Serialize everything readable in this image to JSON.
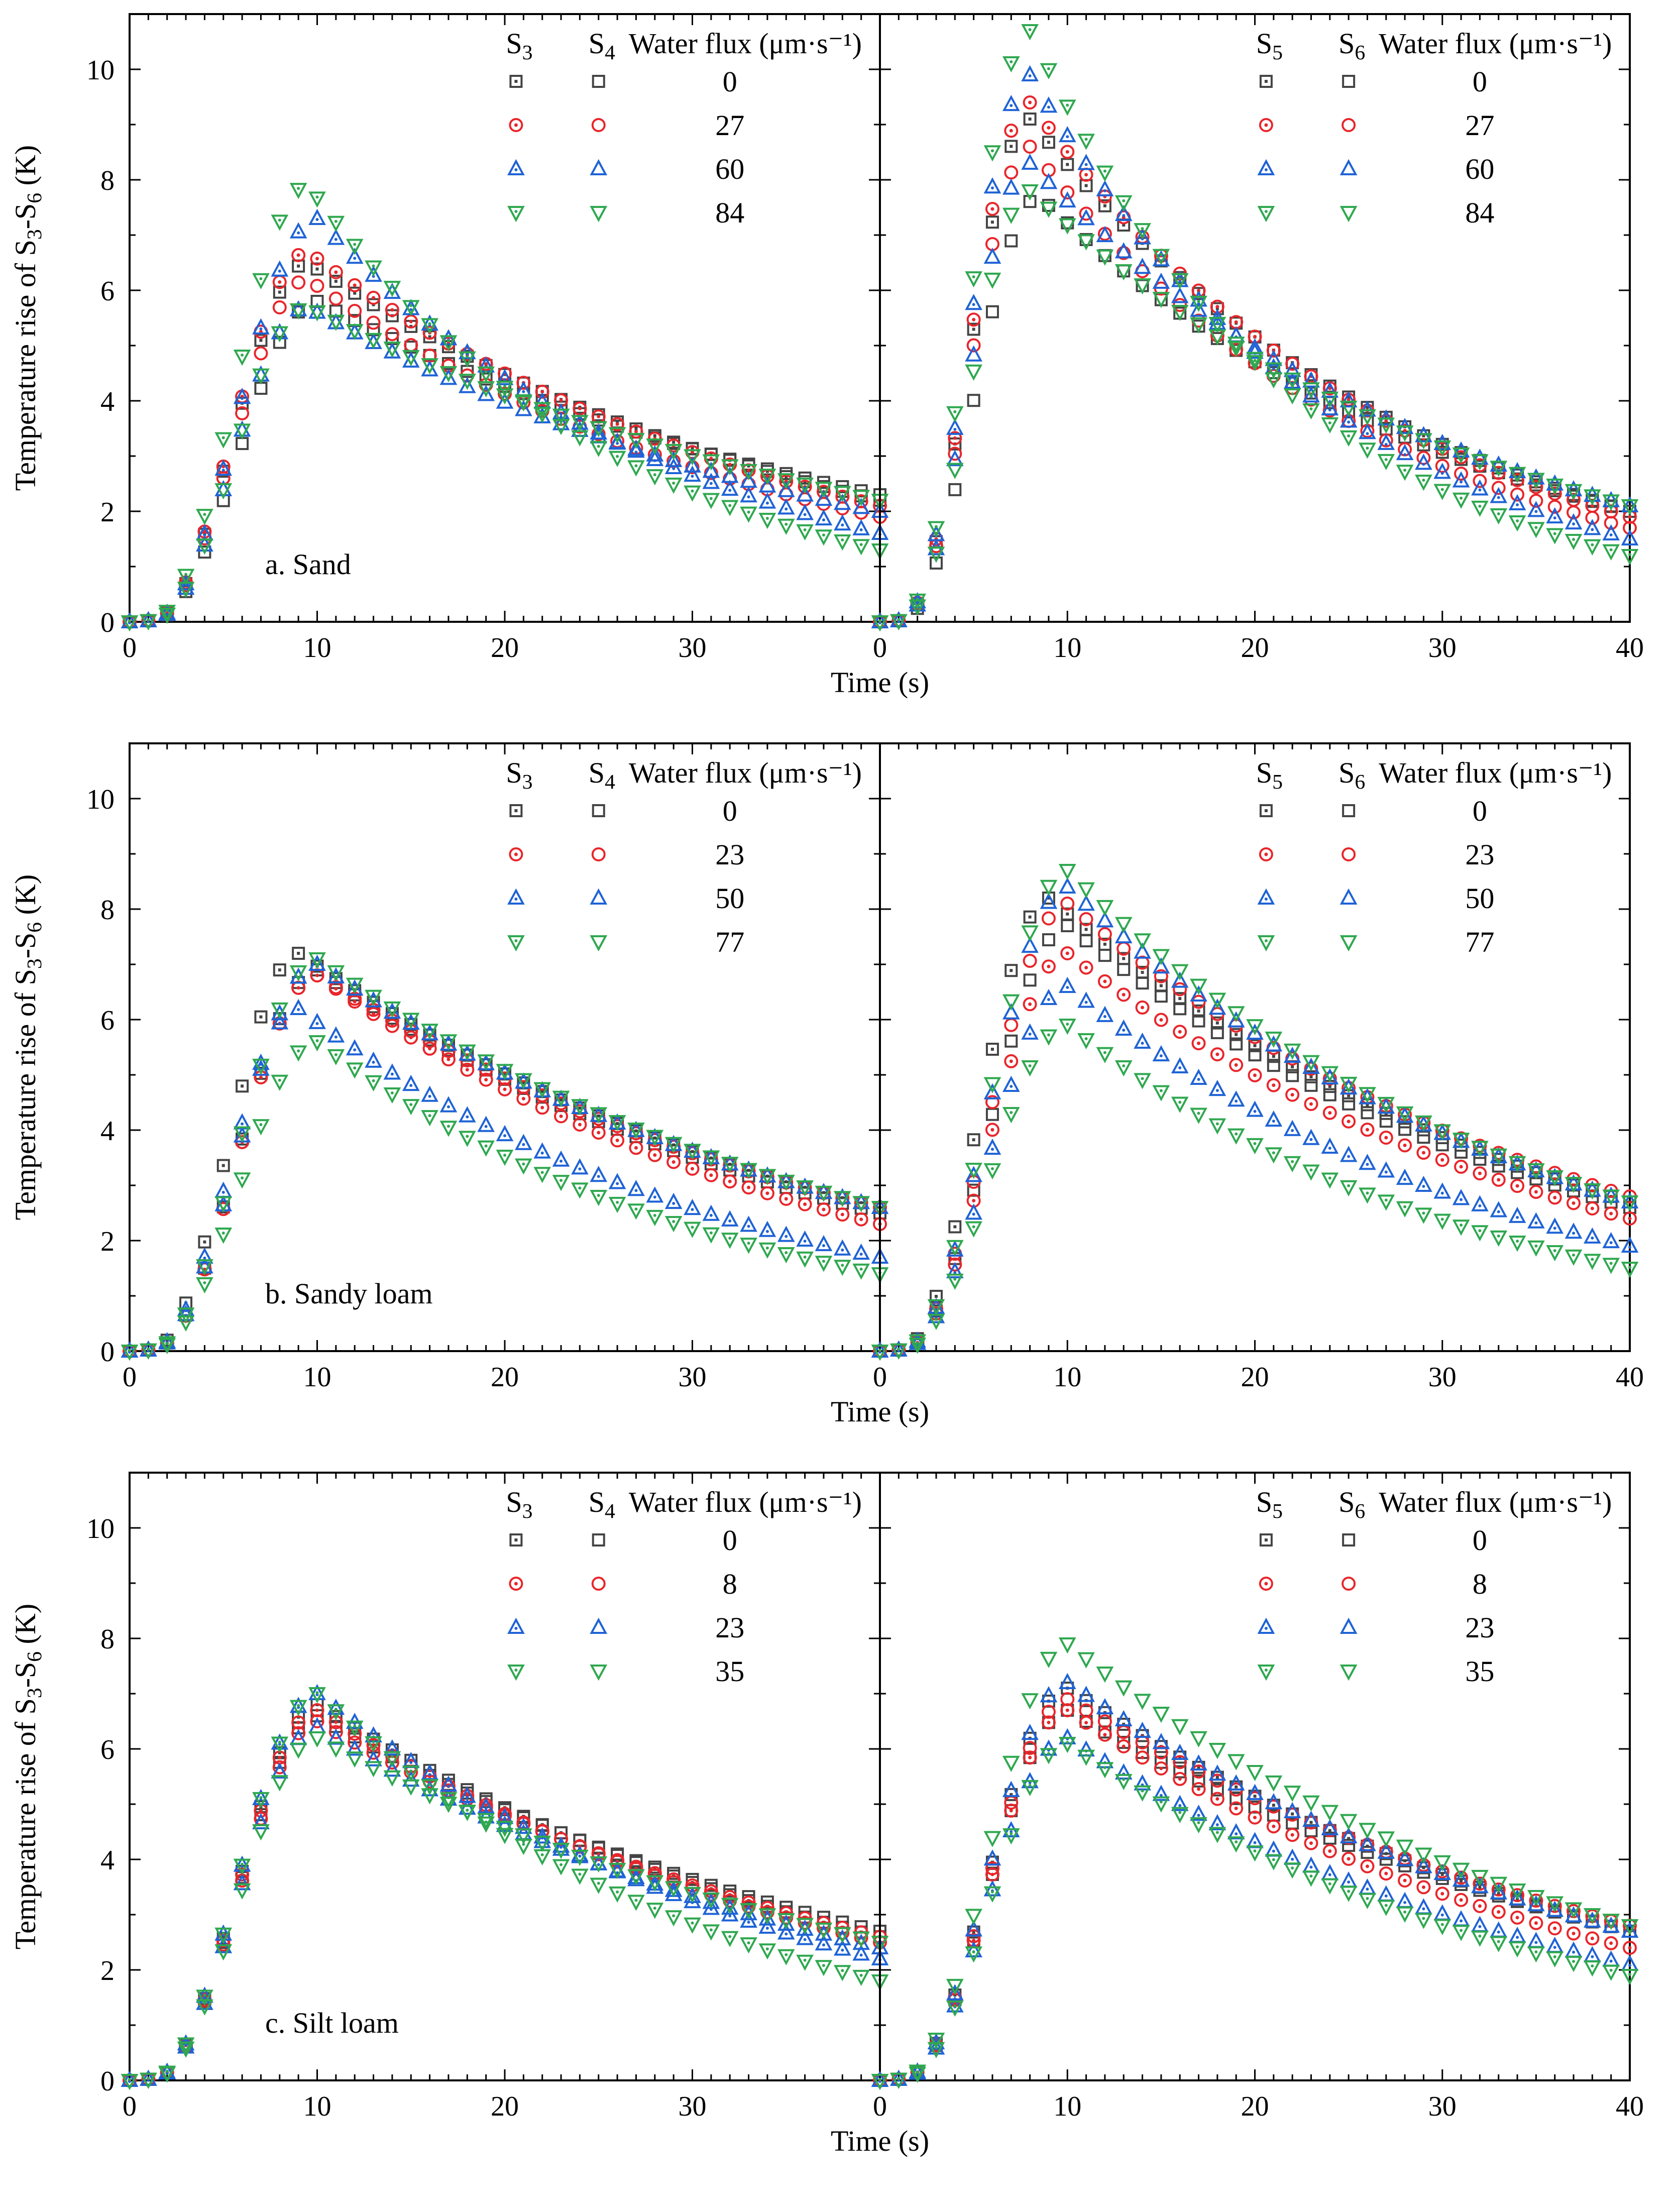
{
  "figure": {
    "x_axis_title": "Time (s)",
    "y_axis_title": "Temperature rise of S3-S6 (K)",
    "legend_header_flux": "Water flux (μm·s⁻¹)"
  },
  "colors": {
    "0": "#444444",
    "1": "#e8262b",
    "2": "#1f63d6",
    "3": "#2fa84f"
  },
  "chart_data": [
    {
      "type": "scatter",
      "panel": "a. Sand",
      "side": "left",
      "sensors": [
        "S3",
        "S4"
      ],
      "flux_values": [
        "0",
        "27",
        "60",
        "84"
      ],
      "x_ticks": [
        0,
        10,
        20,
        30
      ],
      "y_ticks": [
        0,
        2,
        4,
        6,
        8,
        10
      ],
      "xlim": [
        0,
        40
      ],
      "ylim": [
        0,
        11
      ],
      "series": [
        {
          "sensor": "S3",
          "flux": "0",
          "peak": 6.5,
          "tpeak": 9.5,
          "end": 2.2
        },
        {
          "sensor": "S4",
          "flux": "0",
          "peak": 5.8,
          "tpeak": 10,
          "end": 2.3
        },
        {
          "sensor": "S3",
          "flux": "27",
          "peak": 6.7,
          "tpeak": 9.5,
          "end": 2.1
        },
        {
          "sensor": "S4",
          "flux": "27",
          "peak": 6.2,
          "tpeak": 9.5,
          "end": 1.9
        },
        {
          "sensor": "S3",
          "flux": "60",
          "peak": 7.3,
          "tpeak": 10,
          "end": 1.6
        },
        {
          "sensor": "S4",
          "flux": "60",
          "peak": 5.7,
          "tpeak": 9.5,
          "end": 2.0
        },
        {
          "sensor": "S3",
          "flux": "84",
          "peak": 7.9,
          "tpeak": 9.5,
          "end": 1.3
        },
        {
          "sensor": "S4",
          "flux": "84",
          "peak": 5.7,
          "tpeak": 9.5,
          "end": 2.2
        }
      ]
    },
    {
      "type": "scatter",
      "panel": "",
      "side": "right",
      "sensors": [
        "S5",
        "S6"
      ],
      "flux_values": [
        "0",
        "27",
        "60",
        "84"
      ],
      "x_ticks": [
        0,
        10,
        20,
        30,
        40
      ],
      "y_ticks": [],
      "xlim": [
        0,
        40
      ],
      "ylim": [
        0,
        11
      ],
      "series": [
        {
          "sensor": "S5",
          "flux": "0",
          "peak": 9.1,
          "tpeak": 8,
          "end": 2.0
        },
        {
          "sensor": "S6",
          "flux": "0",
          "peak": 7.7,
          "tpeak": 8.5,
          "end": 2.0
        },
        {
          "sensor": "S5",
          "flux": "27",
          "peak": 9.4,
          "tpeak": 8,
          "end": 1.9
        },
        {
          "sensor": "S6",
          "flux": "27",
          "peak": 8.6,
          "tpeak": 8,
          "end": 1.7
        },
        {
          "sensor": "S5",
          "flux": "60",
          "peak": 9.9,
          "tpeak": 8,
          "end": 1.5
        },
        {
          "sensor": "S6",
          "flux": "60",
          "peak": 8.3,
          "tpeak": 8,
          "end": 2.1
        },
        {
          "sensor": "S5",
          "flux": "84",
          "peak": 10.7,
          "tpeak": 8,
          "end": 1.2
        },
        {
          "sensor": "S6",
          "flux": "84",
          "peak": 7.8,
          "tpeak": 8,
          "end": 2.1
        }
      ]
    },
    {
      "type": "scatter",
      "panel": "b. Sandy loam",
      "side": "left",
      "sensors": [
        "S3",
        "S4"
      ],
      "flux_values": [
        "0",
        "23",
        "50",
        "77"
      ],
      "x_ticks": [
        0,
        10,
        20,
        30
      ],
      "y_ticks": [
        0,
        2,
        4,
        6,
        8,
        10
      ],
      "xlim": [
        0,
        40
      ],
      "ylim": [
        0,
        11
      ],
      "series": [
        {
          "sensor": "S3",
          "flux": "0",
          "peak": 7.2,
          "tpeak": 9,
          "end": 2.6
        },
        {
          "sensor": "S4",
          "flux": "0",
          "peak": 6.9,
          "tpeak": 10,
          "end": 2.5
        },
        {
          "sensor": "S3",
          "flux": "23",
          "peak": 6.8,
          "tpeak": 10,
          "end": 2.3
        },
        {
          "sensor": "S4",
          "flux": "23",
          "peak": 6.8,
          "tpeak": 10,
          "end": 2.6
        },
        {
          "sensor": "S3",
          "flux": "50",
          "peak": 6.2,
          "tpeak": 9,
          "end": 1.7
        },
        {
          "sensor": "S4",
          "flux": "50",
          "peak": 7.0,
          "tpeak": 10,
          "end": 2.6
        },
        {
          "sensor": "S3",
          "flux": "77",
          "peak": 5.6,
          "tpeak": 10,
          "end": 1.4
        },
        {
          "sensor": "S4",
          "flux": "77",
          "peak": 7.1,
          "tpeak": 10,
          "end": 2.6
        }
      ]
    },
    {
      "type": "scatter",
      "panel": "",
      "side": "right",
      "sensors": [
        "S5",
        "S6"
      ],
      "flux_values": [
        "0",
        "23",
        "50",
        "77"
      ],
      "x_ticks": [
        0,
        10,
        20,
        30,
        40
      ],
      "y_ticks": [],
      "xlim": [
        0,
        40
      ],
      "ylim": [
        0,
        11
      ],
      "series": [
        {
          "sensor": "S5",
          "flux": "0",
          "peak": 8.2,
          "tpeak": 9,
          "end": 2.7
        },
        {
          "sensor": "S6",
          "flux": "0",
          "peak": 7.7,
          "tpeak": 10,
          "end": 2.6
        },
        {
          "sensor": "S5",
          "flux": "23",
          "peak": 7.2,
          "tpeak": 10,
          "end": 2.4
        },
        {
          "sensor": "S6",
          "flux": "23",
          "peak": 8.1,
          "tpeak": 10,
          "end": 2.8
        },
        {
          "sensor": "S5",
          "flux": "50",
          "peak": 6.6,
          "tpeak": 10,
          "end": 1.9
        },
        {
          "sensor": "S6",
          "flux": "50",
          "peak": 8.4,
          "tpeak": 10,
          "end": 2.7
        },
        {
          "sensor": "S5",
          "flux": "77",
          "peak": 5.9,
          "tpeak": 10,
          "end": 1.5
        },
        {
          "sensor": "S6",
          "flux": "77",
          "peak": 8.7,
          "tpeak": 10,
          "end": 2.7
        }
      ]
    },
    {
      "type": "scatter",
      "panel": "c. Silt loam",
      "side": "left",
      "sensors": [
        "S3",
        "S4"
      ],
      "flux_values": [
        "0",
        "8",
        "23",
        "35"
      ],
      "x_ticks": [
        0,
        10,
        20,
        30
      ],
      "y_ticks": [
        0,
        2,
        4,
        6,
        8,
        10
      ],
      "xlim": [
        0,
        40
      ],
      "ylim": [
        0,
        11
      ],
      "series": [
        {
          "sensor": "S3",
          "flux": "0",
          "peak": 6.8,
          "tpeak": 10,
          "end": 2.6
        },
        {
          "sensor": "S4",
          "flux": "0",
          "peak": 6.6,
          "tpeak": 10,
          "end": 2.7
        },
        {
          "sensor": "S3",
          "flux": "8",
          "peak": 6.7,
          "tpeak": 10,
          "end": 2.5
        },
        {
          "sensor": "S4",
          "flux": "8",
          "peak": 6.5,
          "tpeak": 10,
          "end": 2.6
        },
        {
          "sensor": "S3",
          "flux": "23",
          "peak": 7.0,
          "tpeak": 10,
          "end": 2.2
        },
        {
          "sensor": "S4",
          "flux": "23",
          "peak": 6.4,
          "tpeak": 10,
          "end": 2.4
        },
        {
          "sensor": "S3",
          "flux": "35",
          "peak": 7.0,
          "tpeak": 10,
          "end": 1.8
        },
        {
          "sensor": "S4",
          "flux": "35",
          "peak": 6.2,
          "tpeak": 10,
          "end": 2.5
        }
      ]
    },
    {
      "type": "scatter",
      "panel": "",
      "side": "right",
      "sensors": [
        "S5",
        "S6"
      ],
      "flux_values": [
        "0",
        "8",
        "23",
        "35"
      ],
      "x_ticks": [
        0,
        10,
        20,
        30,
        40
      ],
      "y_ticks": [],
      "xlim": [
        0,
        40
      ],
      "ylim": [
        0,
        11
      ],
      "series": [
        {
          "sensor": "S5",
          "flux": "0",
          "peak": 7.1,
          "tpeak": 10,
          "end": 2.7
        },
        {
          "sensor": "S6",
          "flux": "0",
          "peak": 6.7,
          "tpeak": 10,
          "end": 2.7
        },
        {
          "sensor": "S5",
          "flux": "8",
          "peak": 6.7,
          "tpeak": 10,
          "end": 2.4
        },
        {
          "sensor": "S6",
          "flux": "8",
          "peak": 6.9,
          "tpeak": 10,
          "end": 2.8
        },
        {
          "sensor": "S5",
          "flux": "23",
          "peak": 6.2,
          "tpeak": 10,
          "end": 2.1
        },
        {
          "sensor": "S6",
          "flux": "23",
          "peak": 7.2,
          "tpeak": 10,
          "end": 2.7
        },
        {
          "sensor": "S5",
          "flux": "35",
          "peak": 6.1,
          "tpeak": 10,
          "end": 1.9
        },
        {
          "sensor": "S6",
          "flux": "35",
          "peak": 7.9,
          "tpeak": 10,
          "end": 2.8
        }
      ]
    }
  ]
}
